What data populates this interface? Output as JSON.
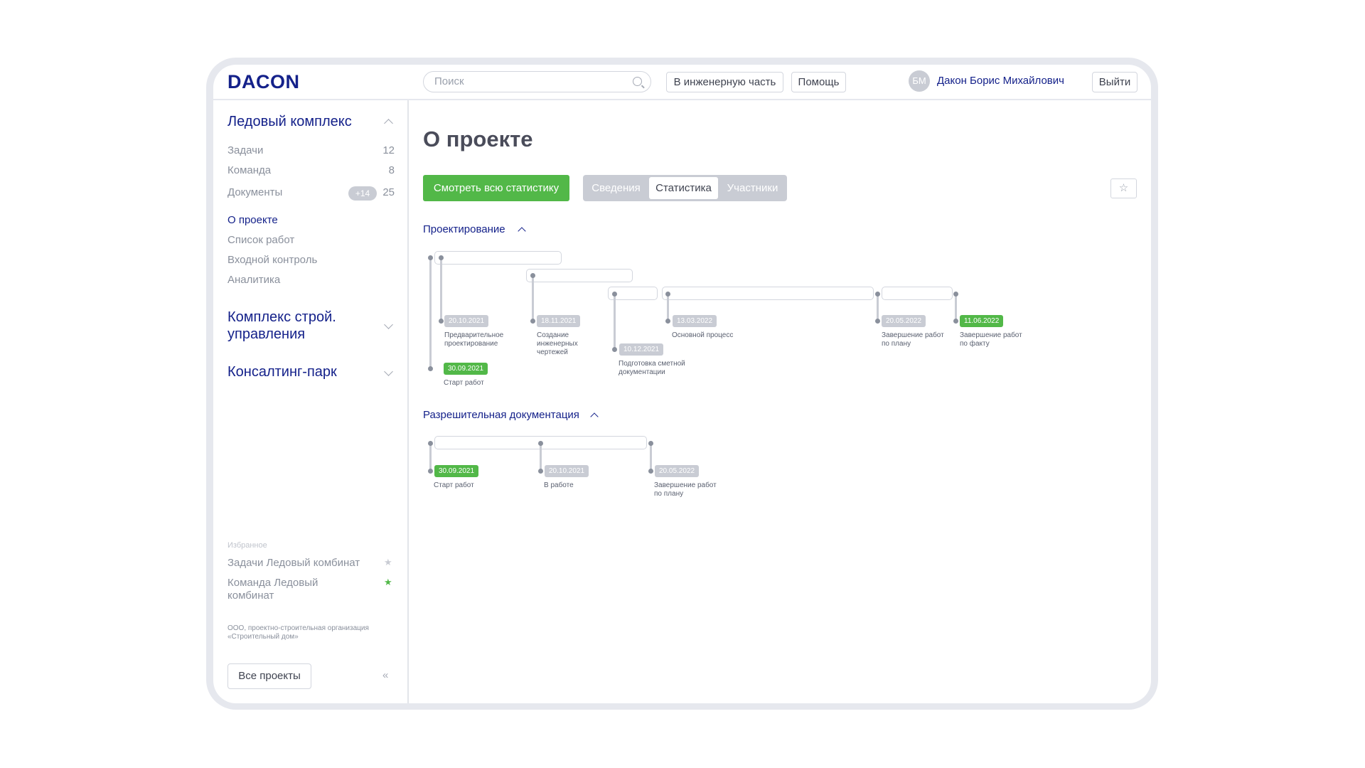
{
  "header": {
    "logo": "DACON",
    "search_placeholder": "Поиск",
    "engineering_button": "В инженерную часть",
    "help_button": "Помощь",
    "avatar_initials": "БМ",
    "user_name": "Дакон Борис Михайлович",
    "logout_button": "Выйти"
  },
  "sidebar": {
    "projects": [
      {
        "name": "Ледовый комплекс",
        "expanded": true,
        "counters": [
          {
            "label": "Задачи",
            "count": "12"
          },
          {
            "label": "Команда",
            "count": "8"
          },
          {
            "label": "Документы",
            "badge": "+14",
            "count": "25"
          }
        ],
        "links": [
          {
            "label": "О проекте",
            "active": true
          },
          {
            "label": "Список работ"
          },
          {
            "label": "Входной контроль"
          },
          {
            "label": "Аналитика"
          }
        ]
      },
      {
        "name_line1": "Комплекс строй.",
        "name_line2": "управления",
        "expanded": false
      },
      {
        "name": "Консалтинг-парк",
        "expanded": false
      }
    ],
    "favorites_title": "Избранное",
    "favorites": [
      {
        "label": "Задачи Ледовый комбинат",
        "starred_color": "#c9ccd4"
      },
      {
        "label_line1": "Команда Ледовый",
        "label_line2": "комбинат",
        "starred_color": "#52b848"
      }
    ],
    "org": "ООО, проектно-строительная организация «Строительный дом»",
    "all_projects_button": "Все проекты",
    "collapse_icon": "«"
  },
  "main": {
    "title": "О проекте",
    "stats_button": "Смотреть всю статистику",
    "tabs": [
      {
        "label": "Сведения"
      },
      {
        "label": "Статистика",
        "active": true
      },
      {
        "label": "Участники"
      }
    ],
    "favorite_icon": "☆",
    "sections": [
      {
        "title": "Проектирование",
        "milestones": [
          {
            "date": "30.09.2021",
            "label": "Старт работ",
            "done": true
          },
          {
            "date": "20.10.2021",
            "label": "Предварительное\nпроектирование"
          },
          {
            "date": "18.11.2021",
            "label": "Создание\nинженерных\nчертежей"
          },
          {
            "date": "10.12.2021",
            "label": "Подготовка сметной\nдокументации"
          },
          {
            "date": "13.03.2022",
            "label": "Основной процесс"
          },
          {
            "date": "20.05.2022",
            "label": "Завершение работ\nпо плану"
          },
          {
            "date": "11.06.2022",
            "label": "Завершение работ\nпо факту",
            "done": true
          }
        ]
      },
      {
        "title": "Разрешительная документация",
        "milestones": [
          {
            "date": "30.09.2021",
            "label": "Старт работ",
            "done": true
          },
          {
            "date": "20.10.2021",
            "label": "В работе"
          },
          {
            "date": "20.05.2022",
            "label": "Завершение работ\nпо плану"
          }
        ]
      }
    ]
  },
  "colors": {
    "brand": "#14218a",
    "accent_green": "#52b848",
    "muted": "#c9ccd4"
  }
}
